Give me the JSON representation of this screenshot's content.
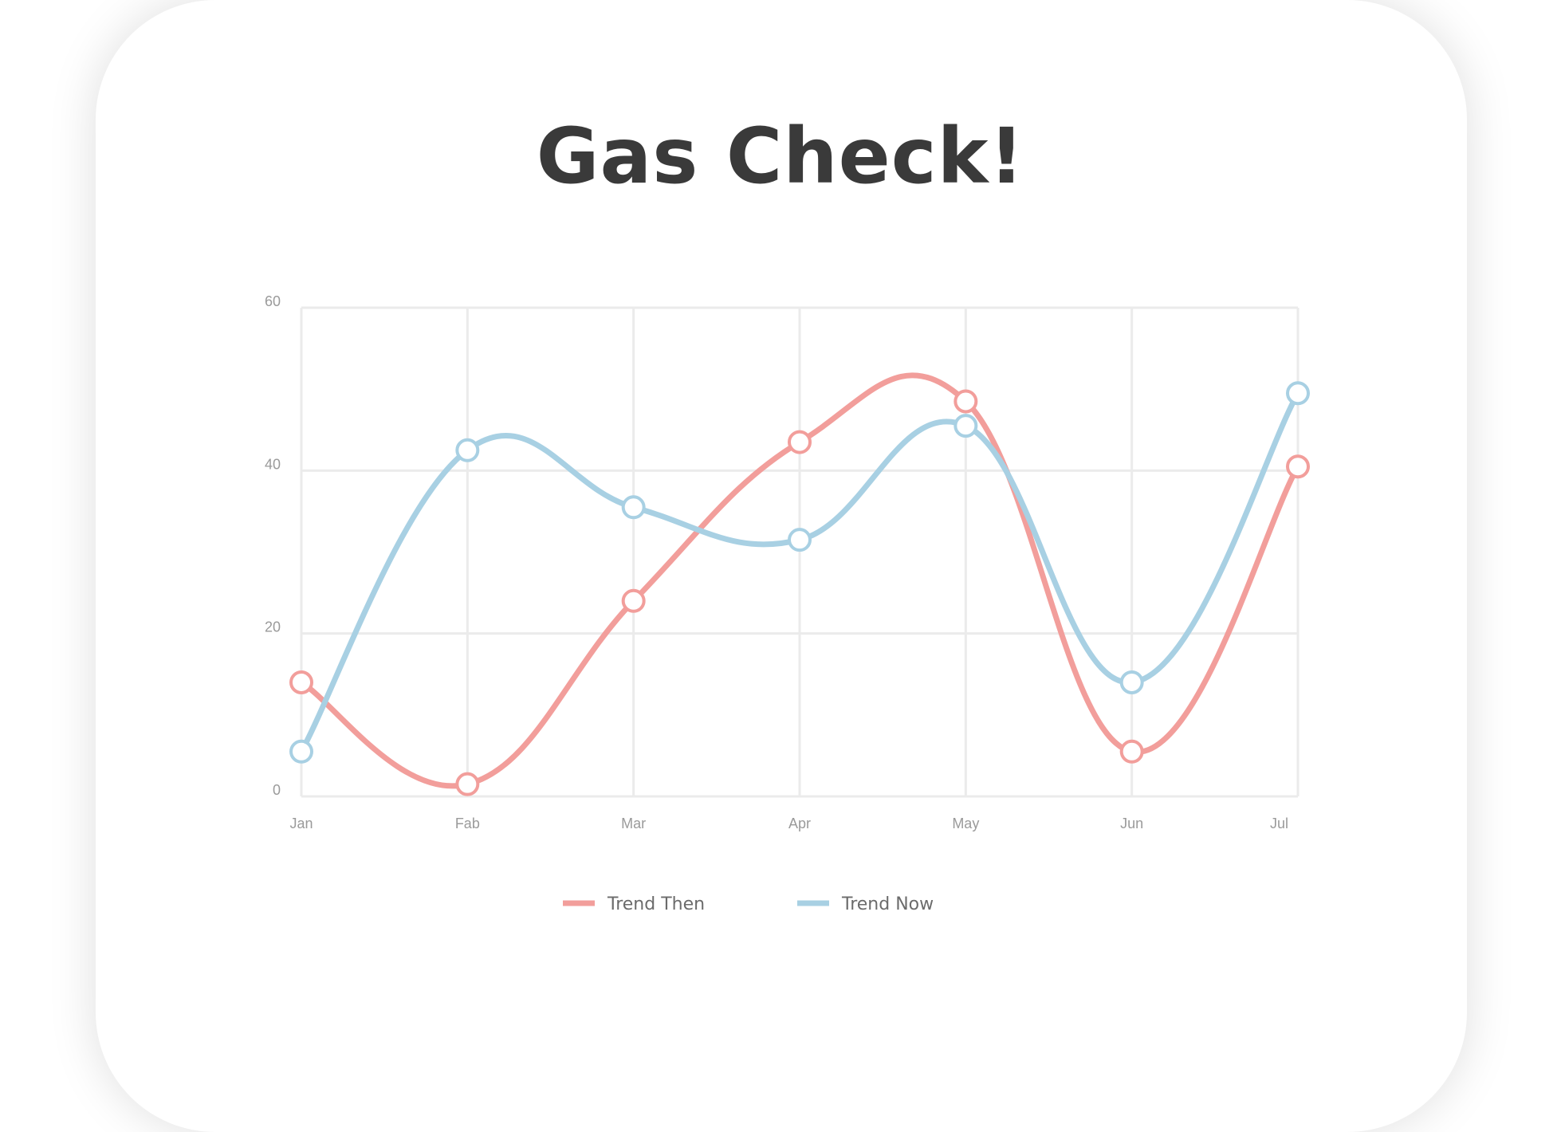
{
  "title": "Gas Check!",
  "chart_data": {
    "type": "line",
    "categories": [
      "Jan",
      "Fab",
      "Mar",
      "Apr",
      "May",
      "Jun",
      "Jul"
    ],
    "series": [
      {
        "name": "Trend Then",
        "color": "#f29e9b",
        "values": [
          14,
          1.5,
          24,
          43.5,
          48.5,
          5.5,
          40.5
        ]
      },
      {
        "name": "Trend Now",
        "color": "#a8d0e3",
        "values": [
          5.5,
          42.5,
          35.5,
          31.5,
          45.5,
          14,
          49.5
        ]
      }
    ],
    "yticks": [
      0,
      20,
      40,
      60
    ],
    "ylim": [
      0,
      60
    ],
    "grid": true,
    "legend": "bottom-center",
    "xlabel": "",
    "ylabel": ""
  }
}
